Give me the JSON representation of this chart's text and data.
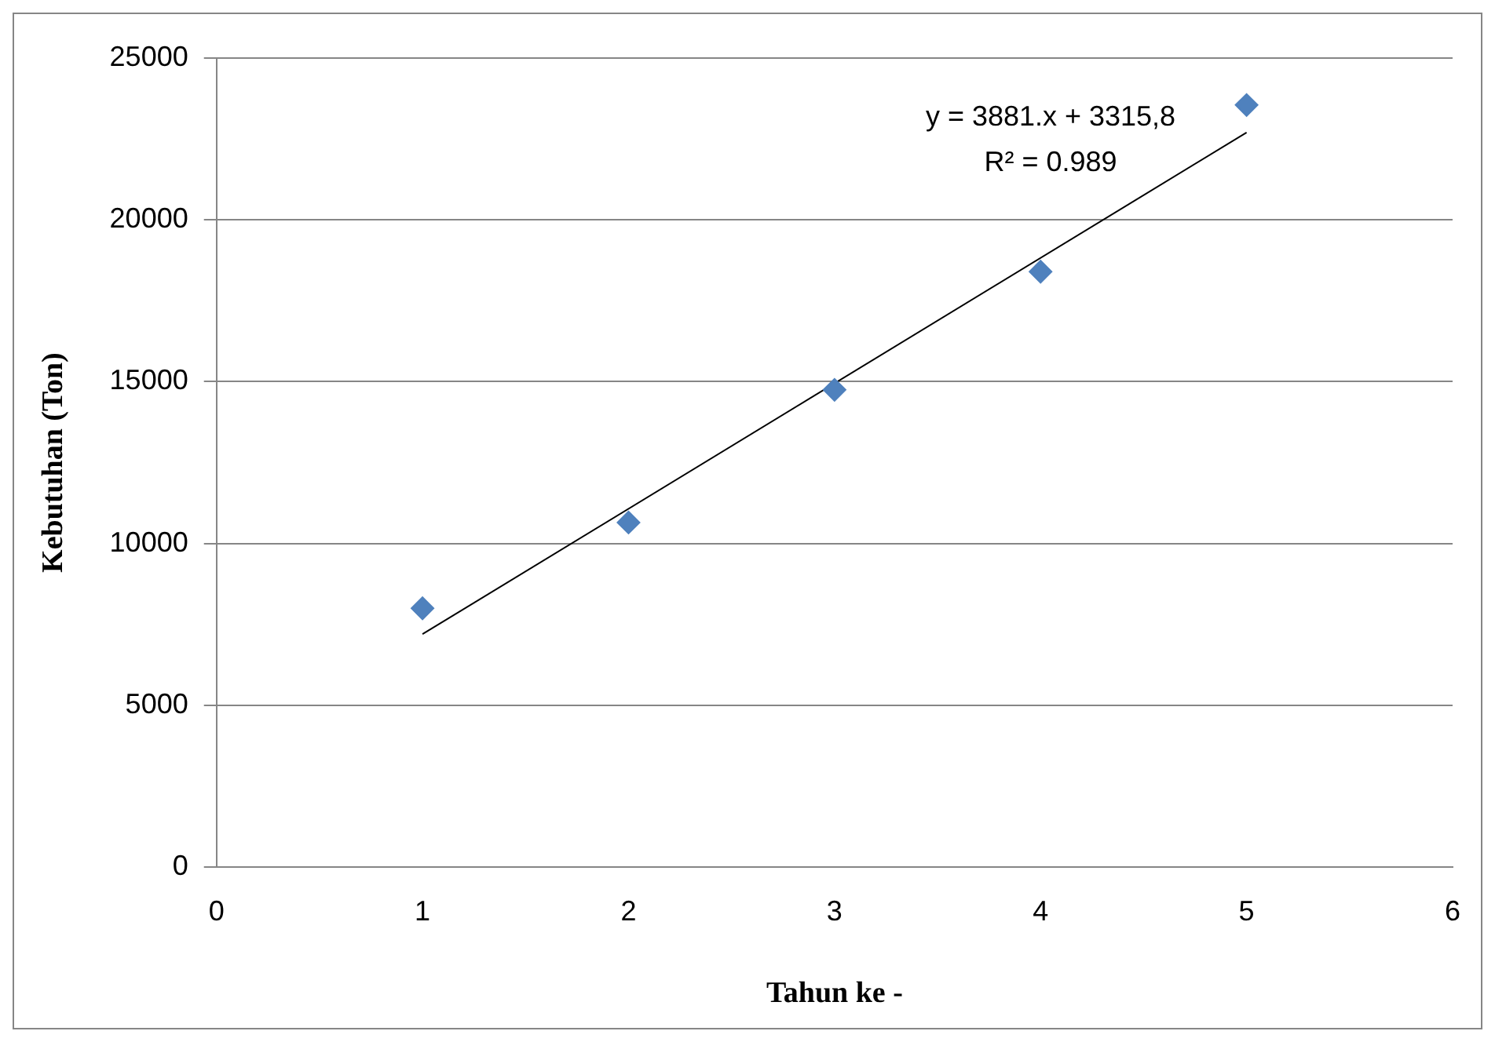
{
  "chart_data": {
    "type": "scatter",
    "xlabel": "Tahun ke -",
    "ylabel": "Kebutuhan (Ton)",
    "xlim": [
      0,
      6
    ],
    "xticks": [
      0,
      1,
      2,
      3,
      4,
      5,
      6
    ],
    "ylim": [
      0,
      25000
    ],
    "yticks": [
      0,
      5000,
      10000,
      15000,
      20000,
      25000
    ],
    "grid": "y",
    "legend": false,
    "series": [
      {
        "type": "scatter",
        "x": [
          1,
          2,
          3,
          4,
          5
        ],
        "values": [
          8000,
          10650,
          14750,
          18400,
          23550
        ],
        "color": "#4f81bd",
        "marker": "diamond"
      },
      {
        "type": "line",
        "x": [
          1,
          5
        ],
        "values": [
          7200,
          22700
        ],
        "color": "#000000",
        "marker": "none",
        "line_style": "solid"
      }
    ],
    "annotations": [
      "y = 3881.x + 3315,8",
      "R² = 0.989"
    ]
  }
}
